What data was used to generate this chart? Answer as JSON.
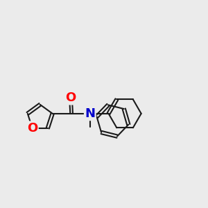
{
  "bg": "#ebebeb",
  "bond_color": "#1a1a1a",
  "oxygen_color": "#ff0000",
  "nitrogen_color": "#0000cc",
  "lw": 1.5,
  "dbo": 0.055,
  "fs": 13,
  "xlim": [
    0,
    7.5
  ],
  "ylim": [
    0.8,
    5.8
  ]
}
